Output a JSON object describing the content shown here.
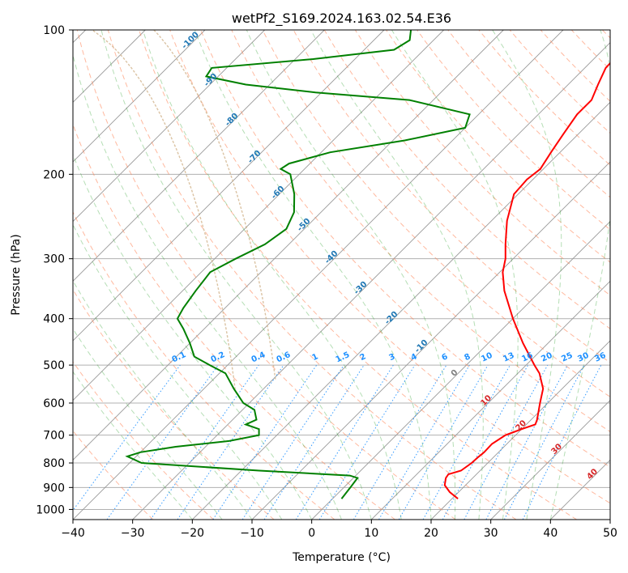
{
  "chart_data": {
    "type": "skew-t",
    "title": "wetPf2_S169.2024.163.02.54.E36",
    "xlabel": "Temperature (°C)",
    "ylabel": "Pressure (hPa)",
    "xlim": [
      -40,
      50
    ],
    "ylim": [
      1050,
      100
    ],
    "y_scale": "log",
    "grid": true,
    "x_ticks": [
      "−40",
      "−30",
      "−20",
      "−10",
      "0",
      "10",
      "20",
      "30",
      "40",
      "50"
    ],
    "y_ticks": [
      "100",
      "200",
      "300",
      "400",
      "500",
      "600",
      "700",
      "800",
      "900",
      "1000"
    ],
    "x_tick_values": [
      -40,
      -30,
      -20,
      -10,
      0,
      10,
      20,
      30,
      40,
      50
    ],
    "y_tick_values": [
      100,
      200,
      300,
      400,
      500,
      600,
      700,
      800,
      900,
      1000
    ],
    "colors": {
      "temperature": "#ff0000",
      "dewpoint": "#008000",
      "dry_adiabat": "#ff7f50",
      "moist_adiabat": "#2ca02c",
      "mixing_ratio": "#1f77b4",
      "mixing_ratio_label": "#1e90ff",
      "isotherm": "#808080",
      "grid": "#b0b0b0",
      "theta_label": "#d62728",
      "wbt_label": "#1f77b4",
      "tan_curve": "#d2b48c"
    },
    "series": [
      {
        "key": "temperature",
        "p": [
          950,
          920,
          890,
          860,
          845,
          830,
          800,
          780,
          760,
          730,
          700,
          680,
          665,
          650,
          600,
          560,
          520,
          500,
          450,
          400,
          350,
          320,
          300,
          280,
          250,
          220,
          205,
          195,
          180,
          165,
          150,
          140,
          130,
          120,
          110,
          100
        ],
        "t": [
          21,
          18.5,
          16.5,
          15.5,
          15.3,
          16.8,
          17.3,
          17.4,
          17.6,
          17.5,
          18.3,
          20.0,
          21.5,
          21.0,
          18.7,
          16.8,
          13.6,
          11.4,
          5.8,
          0.0,
          -6.1,
          -9.5,
          -11.3,
          -13.7,
          -17.4,
          -20.7,
          -21.0,
          -20.5,
          -21.5,
          -22.5,
          -23.5,
          -23.5,
          -25.0,
          -26.5,
          -26.7,
          -25.5
        ]
      },
      {
        "key": "dewpoint",
        "p": [
          950,
          900,
          870,
          860,
          850,
          830,
          800,
          775,
          760,
          740,
          720,
          700,
          680,
          665,
          650,
          620,
          600,
          560,
          520,
          500,
          480,
          450,
          420,
          400,
          380,
          350,
          320,
          300,
          280,
          260,
          240,
          220,
          200,
          195,
          190,
          180,
          170,
          160,
          150,
          140,
          135,
          130,
          125,
          120,
          115,
          110,
          105,
          100
        ],
        "td": [
          1.5,
          1.1,
          0.8,
          0.7,
          -1.0,
          -17.0,
          -38.0,
          -41.5,
          -40.0,
          -35.0,
          -27.0,
          -23.0,
          -24.0,
          -27.0,
          -26.0,
          -28.0,
          -31.0,
          -35.0,
          -39.0,
          -43.0,
          -47.0,
          -50.0,
          -53.5,
          -56.2,
          -57.0,
          -57.8,
          -58.5,
          -56.5,
          -54.0,
          -53.0,
          -54.5,
          -57.5,
          -61.5,
          -64.0,
          -63.5,
          -58.5,
          -48.0,
          -40.0,
          -41.5,
          -54.0,
          -71.0,
          -84.0,
          -92.0,
          -92.5,
          -77.0,
          -65.0,
          -64.0,
          -65.5
        ]
      }
    ],
    "moist_adiabat_labels": [
      "-100",
      "-90",
      "-80",
      "-70",
      "-60",
      "-50",
      "-40",
      "-30",
      "-20",
      "-10",
      "0"
    ],
    "dry_adiabat_labels": [
      "10",
      "20",
      "30",
      "40"
    ],
    "mixing_ratio_labels": [
      "0.1",
      "0.2",
      "0.4",
      "0.6",
      "1",
      "1.5",
      "2",
      "3",
      "4",
      "6",
      "8",
      "10",
      "13",
      "16",
      "20",
      "25",
      "30",
      "36"
    ]
  }
}
